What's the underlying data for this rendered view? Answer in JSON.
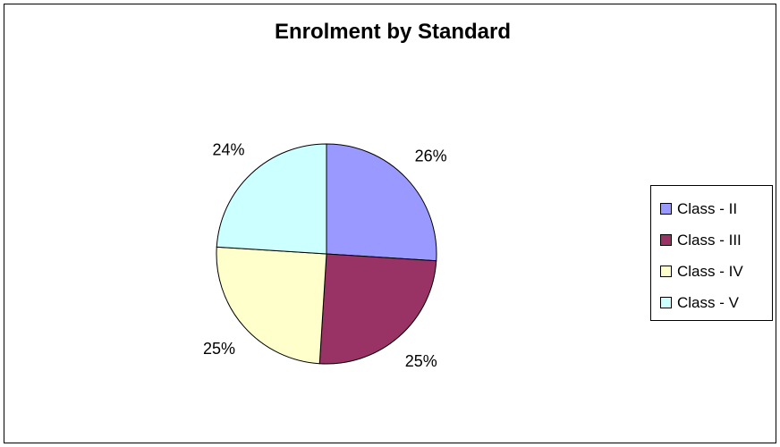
{
  "chart_data": {
    "type": "pie",
    "title": "Enrolment by Standard",
    "categories": [
      "Class - II",
      "Class - III",
      "Class - IV",
      "Class - V"
    ],
    "values": [
      26,
      25,
      25,
      24
    ],
    "labels": [
      "26%",
      "25%",
      "25%",
      "24%"
    ],
    "colors": [
      "#9999FF",
      "#993366",
      "#FFFFCC",
      "#CCFFFF"
    ],
    "start_angle": "12 o'clock",
    "direction": "clockwise",
    "legend": "right"
  }
}
